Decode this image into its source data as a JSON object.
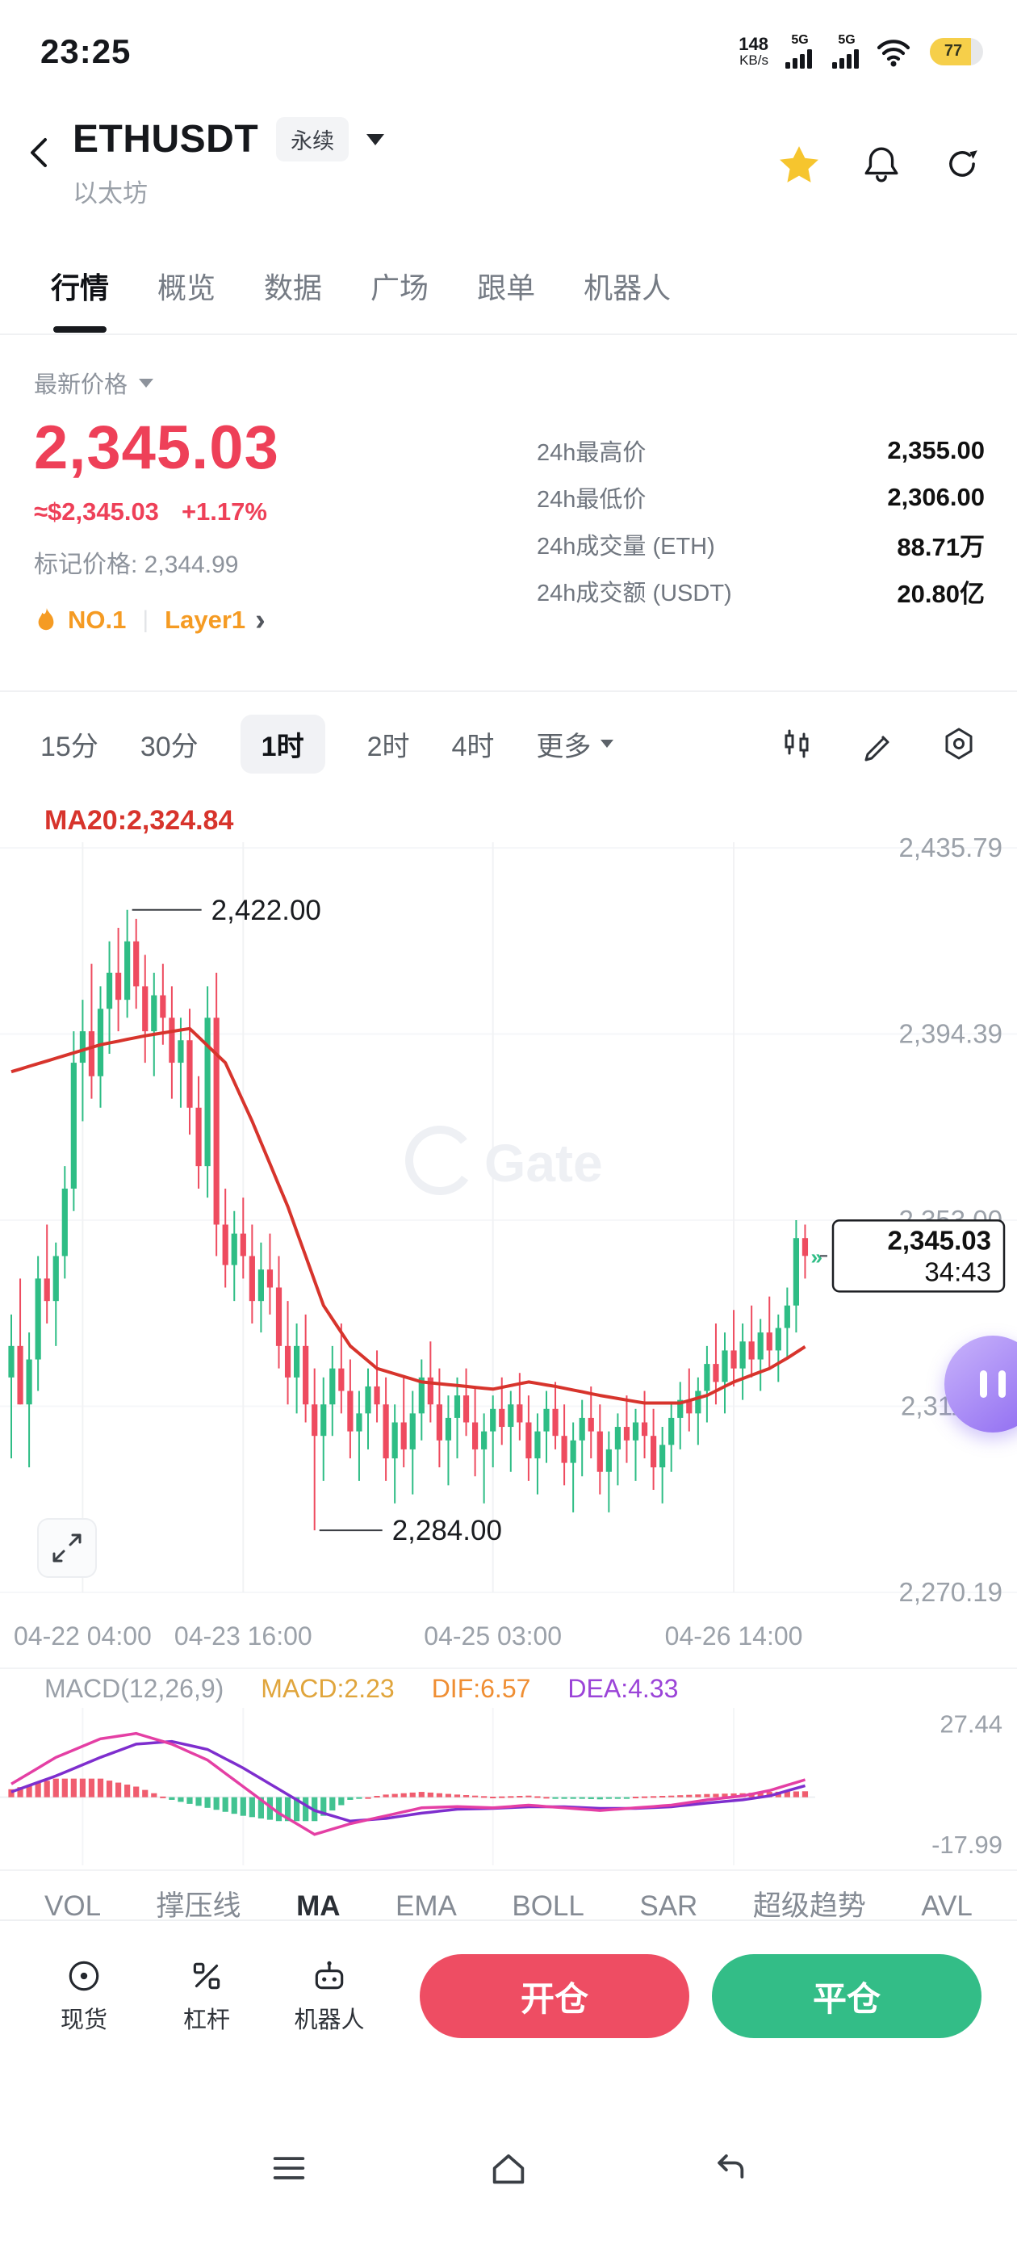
{
  "status_bar": {
    "time": "23:25",
    "net_speed_value": "148",
    "net_speed_unit": "KB/s",
    "sim1_label": "5G",
    "sim2_label": "5G",
    "battery_percent": "77"
  },
  "header": {
    "symbol": "ETHUSDT",
    "contract_type_badge": "永续",
    "subtitle": "以太坊"
  },
  "nav_tabs": {
    "items": [
      "行情",
      "概览",
      "数据",
      "广场",
      "跟单",
      "机器人"
    ],
    "active": "行情"
  },
  "price_panel": {
    "label": "最新价格",
    "last_price": "2,345.03",
    "usd_price": "≈$2,345.03",
    "change_percent": "+1.17%",
    "mark_price_label": "标记价格: 2,344.99",
    "rank_label": "NO.1",
    "sector_label": "Layer1",
    "stats": [
      {
        "label": "24h最高价",
        "value": "2,355.00"
      },
      {
        "label": "24h最低价",
        "value": "2,306.00"
      },
      {
        "label": "24h成交量 (ETH)",
        "value": "88.71万"
      },
      {
        "label": "24h成交额 (USDT)",
        "value": "20.80亿"
      }
    ]
  },
  "timeframe_bar": {
    "options": [
      "15分",
      "30分",
      "1时",
      "2时",
      "4时"
    ],
    "active": "1时",
    "more_label": "更多"
  },
  "chart": {
    "ma_label": "MA20:2,324.84",
    "watermark": "Gate",
    "high_annotation": "2,422.00",
    "low_annotation": "2,284.00",
    "current_price_label": "2,345.03",
    "countdown": "34:43",
    "colors": {
      "up": "#2ebd85",
      "down": "#ee4b5f",
      "ma": "#d7342c",
      "accent_red": "#ee4058"
    }
  },
  "chart_data": {
    "type": "candlestick",
    "timeframe": "1时",
    "y_axis_values": [
      2435.79,
      2394.39,
      2353.0,
      2311.6,
      2270.19
    ],
    "x_axis_labels": [
      "04-22 04:00",
      "04-23 16:00",
      "04-25 03:00",
      "04-26 14:00"
    ],
    "x_tick_indices": [
      8,
      26,
      54,
      81
    ],
    "candles": [
      [
        2318,
        2332,
        2300,
        2325
      ],
      [
        2325,
        2340,
        2312,
        2312
      ],
      [
        2312,
        2328,
        2298,
        2322
      ],
      [
        2322,
        2345,
        2315,
        2340
      ],
      [
        2340,
        2352,
        2330,
        2335
      ],
      [
        2335,
        2348,
        2325,
        2345
      ],
      [
        2345,
        2365,
        2340,
        2360
      ],
      [
        2360,
        2395,
        2355,
        2388
      ],
      [
        2388,
        2402,
        2375,
        2395
      ],
      [
        2395,
        2410,
        2380,
        2385
      ],
      [
        2385,
        2405,
        2378,
        2400
      ],
      [
        2400,
        2415,
        2390,
        2408
      ],
      [
        2408,
        2418,
        2395,
        2402
      ],
      [
        2402,
        2422,
        2398,
        2415
      ],
      [
        2415,
        2420,
        2400,
        2405
      ],
      [
        2405,
        2412,
        2388,
        2395
      ],
      [
        2395,
        2408,
        2385,
        2403
      ],
      [
        2403,
        2410,
        2392,
        2398
      ],
      [
        2398,
        2405,
        2380,
        2388
      ],
      [
        2388,
        2398,
        2378,
        2393
      ],
      [
        2393,
        2400,
        2372,
        2378
      ],
      [
        2378,
        2385,
        2360,
        2365
      ],
      [
        2365,
        2405,
        2358,
        2398
      ],
      [
        2398,
        2408,
        2345,
        2352
      ],
      [
        2352,
        2360,
        2338,
        2343
      ],
      [
        2343,
        2355,
        2335,
        2350
      ],
      [
        2350,
        2358,
        2340,
        2345
      ],
      [
        2345,
        2352,
        2330,
        2335
      ],
      [
        2335,
        2348,
        2328,
        2342
      ],
      [
        2342,
        2350,
        2332,
        2338
      ],
      [
        2338,
        2345,
        2320,
        2325
      ],
      [
        2325,
        2335,
        2312,
        2318
      ],
      [
        2318,
        2330,
        2310,
        2325
      ],
      [
        2325,
        2332,
        2308,
        2312
      ],
      [
        2312,
        2320,
        2284,
        2305
      ],
      [
        2305,
        2318,
        2295,
        2312
      ],
      [
        2312,
        2325,
        2305,
        2320
      ],
      [
        2320,
        2330,
        2310,
        2315
      ],
      [
        2315,
        2322,
        2300,
        2306
      ],
      [
        2306,
        2315,
        2295,
        2310
      ],
      [
        2310,
        2320,
        2302,
        2316
      ],
      [
        2316,
        2324,
        2308,
        2312
      ],
      [
        2312,
        2318,
        2295,
        2300
      ],
      [
        2300,
        2312,
        2290,
        2308
      ],
      [
        2308,
        2318,
        2298,
        2302
      ],
      [
        2302,
        2315,
        2292,
        2310
      ],
      [
        2310,
        2322,
        2304,
        2318
      ],
      [
        2318,
        2326,
        2308,
        2312
      ],
      [
        2312,
        2320,
        2298,
        2304
      ],
      [
        2304,
        2314,
        2294,
        2309
      ],
      [
        2309,
        2318,
        2300,
        2314
      ],
      [
        2314,
        2320,
        2305,
        2308
      ],
      [
        2308,
        2316,
        2296,
        2302
      ],
      [
        2302,
        2310,
        2290,
        2306
      ],
      [
        2306,
        2314,
        2298,
        2311
      ],
      [
        2311,
        2318,
        2303,
        2307
      ],
      [
        2307,
        2315,
        2297,
        2312
      ],
      [
        2312,
        2319,
        2304,
        2308
      ],
      [
        2308,
        2314,
        2295,
        2300
      ],
      [
        2300,
        2310,
        2292,
        2306
      ],
      [
        2306,
        2315,
        2299,
        2311
      ],
      [
        2311,
        2317,
        2302,
        2305
      ],
      [
        2305,
        2312,
        2294,
        2299
      ],
      [
        2299,
        2308,
        2288,
        2304
      ],
      [
        2304,
        2313,
        2296,
        2309
      ],
      [
        2309,
        2316,
        2300,
        2306
      ],
      [
        2306,
        2312,
        2292,
        2297
      ],
      [
        2297,
        2306,
        2288,
        2302
      ],
      [
        2302,
        2310,
        2294,
        2307
      ],
      [
        2307,
        2314,
        2299,
        2304
      ],
      [
        2304,
        2311,
        2295,
        2308
      ],
      [
        2308,
        2315,
        2300,
        2305
      ],
      [
        2305,
        2311,
        2293,
        2298
      ],
      [
        2298,
        2307,
        2290,
        2303
      ],
      [
        2303,
        2312,
        2297,
        2309
      ],
      [
        2309,
        2317,
        2302,
        2313
      ],
      [
        2313,
        2320,
        2306,
        2310
      ],
      [
        2310,
        2318,
        2303,
        2315
      ],
      [
        2315,
        2325,
        2308,
        2321
      ],
      [
        2321,
        2330,
        2312,
        2317
      ],
      [
        2317,
        2328,
        2310,
        2324
      ],
      [
        2324,
        2333,
        2316,
        2320
      ],
      [
        2320,
        2330,
        2313,
        2326
      ],
      [
        2326,
        2334,
        2318,
        2322
      ],
      [
        2322,
        2331,
        2315,
        2328
      ],
      [
        2328,
        2336,
        2320,
        2324
      ],
      [
        2324,
        2332,
        2317,
        2329
      ],
      [
        2329,
        2338,
        2322,
        2334
      ],
      [
        2334,
        2353,
        2328,
        2349
      ],
      [
        2349,
        2352,
        2340,
        2345.03
      ]
    ],
    "ma20_points": [
      [
        0,
        2386
      ],
      [
        5,
        2389
      ],
      [
        10,
        2392
      ],
      [
        15,
        2394
      ],
      [
        20,
        2395.6
      ],
      [
        24,
        2388
      ],
      [
        27,
        2375
      ],
      [
        31,
        2356
      ],
      [
        35,
        2334
      ],
      [
        38,
        2325
      ],
      [
        41,
        2320
      ],
      [
        46,
        2317
      ],
      [
        54,
        2315.4
      ],
      [
        58,
        2317
      ],
      [
        61,
        2316
      ],
      [
        66,
        2314
      ],
      [
        71,
        2312.3
      ],
      [
        75,
        2312.3
      ],
      [
        78,
        2314
      ],
      [
        81,
        2317
      ],
      [
        85,
        2320
      ],
      [
        87,
        2322.3
      ],
      [
        89,
        2324.84
      ]
    ],
    "macd": {
      "y_max": 27.44,
      "y_min": -17.99,
      "dif_points": [
        [
          0,
          5
        ],
        [
          5,
          15
        ],
        [
          10,
          22
        ],
        [
          14,
          24
        ],
        [
          18,
          20
        ],
        [
          22,
          14
        ],
        [
          26,
          4
        ],
        [
          30,
          -6
        ],
        [
          34,
          -14
        ],
        [
          38,
          -10
        ],
        [
          42,
          -7
        ],
        [
          46,
          -4
        ],
        [
          50,
          -3.5
        ],
        [
          54,
          -4
        ],
        [
          58,
          -3
        ],
        [
          62,
          -4
        ],
        [
          66,
          -5
        ],
        [
          70,
          -4
        ],
        [
          74,
          -3
        ],
        [
          78,
          -1
        ],
        [
          82,
          0.5
        ],
        [
          85,
          2.5
        ],
        [
          89,
          6.57
        ]
      ],
      "dea_points": [
        [
          0,
          2
        ],
        [
          5,
          8
        ],
        [
          10,
          15
        ],
        [
          14,
          20
        ],
        [
          18,
          21
        ],
        [
          22,
          18
        ],
        [
          26,
          11
        ],
        [
          30,
          3
        ],
        [
          34,
          -5
        ],
        [
          38,
          -9
        ],
        [
          42,
          -8
        ],
        [
          46,
          -6
        ],
        [
          50,
          -4.5
        ],
        [
          54,
          -4.2
        ],
        [
          58,
          -3.6
        ],
        [
          62,
          -3.6
        ],
        [
          66,
          -4.2
        ],
        [
          70,
          -4.2
        ],
        [
          74,
          -3.6
        ],
        [
          78,
          -2.2
        ],
        [
          82,
          -1
        ],
        [
          85,
          0.5
        ],
        [
          89,
          4.33
        ]
      ]
    }
  },
  "macd_panel": {
    "title": "MACD(12,26,9)",
    "macd_label": "MACD:2.23",
    "dif_label": "DIF:6.57",
    "dea_label": "DEA:4.33",
    "y_max_label": "27.44",
    "y_min_label": "-17.99"
  },
  "indicator_tabs": [
    "VOL",
    "撑压线",
    "MA",
    "EMA",
    "BOLL",
    "SAR",
    "超级趋势",
    "AVL"
  ],
  "action_bar": {
    "items": [
      {
        "label": "现货"
      },
      {
        "label": "杠杆"
      },
      {
        "label": "机器人"
      }
    ],
    "open_button": "开仓",
    "close_button": "平仓"
  }
}
